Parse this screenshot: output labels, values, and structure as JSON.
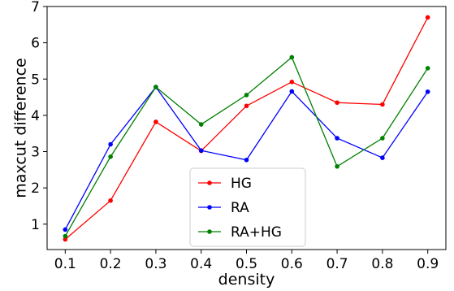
{
  "chart_data": {
    "type": "line",
    "xlabel": "density",
    "ylabel": "maxcut difference",
    "x": [
      0.1,
      0.2,
      0.3,
      0.4,
      0.5,
      0.6,
      0.7,
      0.8,
      0.9
    ],
    "x_tick_labels": [
      "0.1",
      "0.2",
      "0.3",
      "0.4",
      "0.5",
      "0.6",
      "0.7",
      "0.8",
      "0.9"
    ],
    "y_ticks": [
      1,
      2,
      3,
      4,
      5,
      6,
      7
    ],
    "y_tick_labels": [
      "1",
      "2",
      "3",
      "4",
      "5",
      "6",
      "7"
    ],
    "xlim": [
      0.06,
      0.94
    ],
    "ylim": [
      0.3,
      7.0
    ],
    "grid": false,
    "legend_position": "lower-center",
    "series": [
      {
        "name": "HG",
        "color": "#ff0000",
        "values": [
          0.58,
          1.65,
          3.82,
          3.02,
          4.26,
          4.92,
          4.35,
          4.3,
          6.7
        ]
      },
      {
        "name": "RA",
        "color": "#0000ff",
        "values": [
          0.85,
          3.2,
          4.78,
          3.03,
          2.77,
          4.66,
          3.37,
          2.83,
          4.65
        ]
      },
      {
        "name": "RA+HG",
        "color": "#008000",
        "values": [
          0.67,
          2.86,
          4.78,
          3.75,
          4.56,
          5.6,
          2.59,
          3.37,
          5.3
        ]
      }
    ]
  }
}
